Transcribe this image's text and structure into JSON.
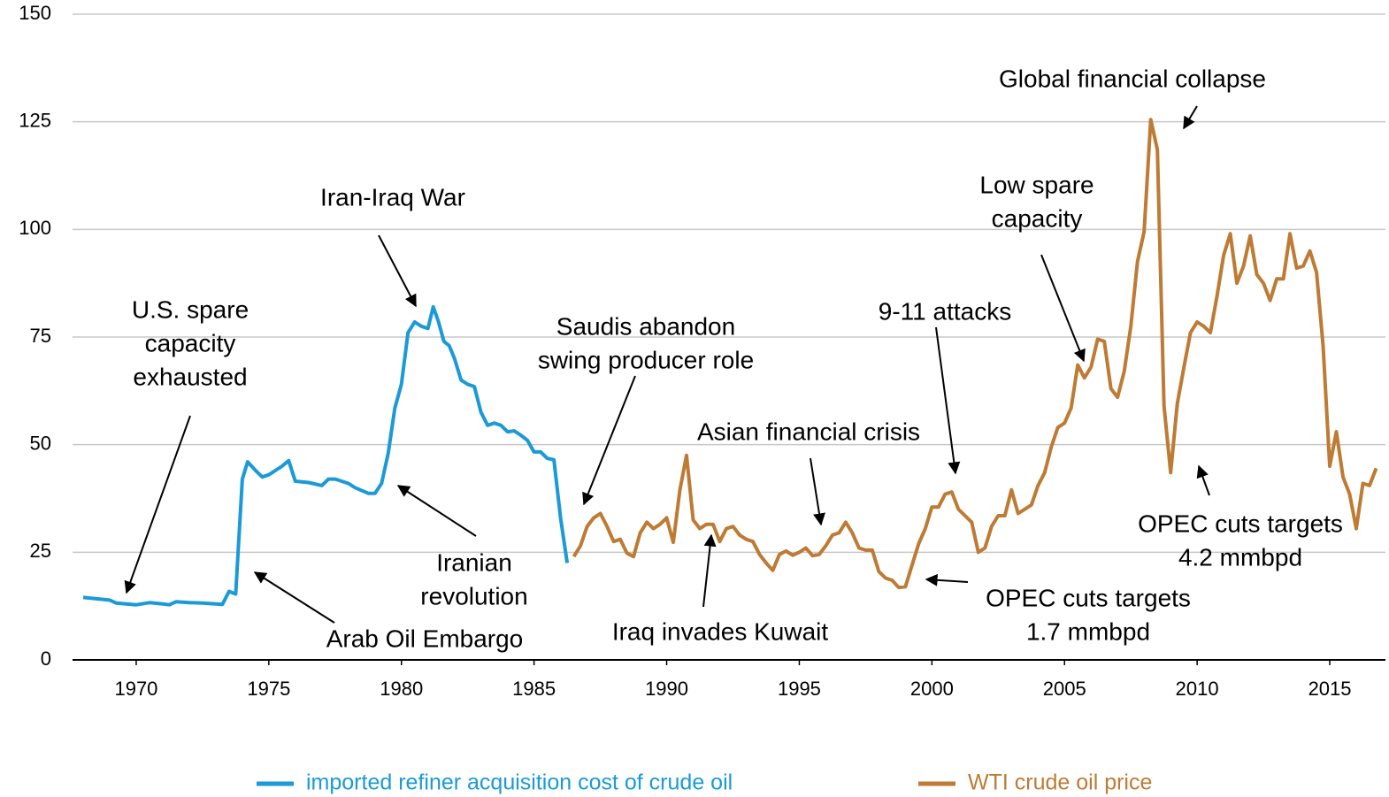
{
  "chart_data": {
    "type": "line",
    "xlim": [
      1967.6,
      2017.1
    ],
    "xticks": [
      1970,
      1975,
      1980,
      1985,
      1990,
      1995,
      2000,
      2005,
      2010,
      2015
    ],
    "ylim": [
      0,
      150
    ],
    "yticks": [
      0,
      25,
      50,
      75,
      100,
      125,
      150
    ],
    "grid": true,
    "legend": "bottom",
    "series": [
      {
        "name": "imported refiner acquisition cost of crude oil",
        "color": "#1a9ad6",
        "x": [
          1968,
          1968.5,
          1969,
          1969.25,
          1970,
          1970.5,
          1971,
          1971.25,
          1971.5,
          1972,
          1972.5,
          1973,
          1973.25,
          1973.5,
          1973.75,
          1974,
          1974.2,
          1974.5,
          1974.75,
          1975,
          1975.5,
          1975.75,
          1976,
          1976.5,
          1977,
          1977.25,
          1977.5,
          1978,
          1978.25,
          1978.75,
          1979,
          1979.25,
          1979.5,
          1979.75,
          1980,
          1980.25,
          1980.5,
          1980.75,
          1981,
          1981.2,
          1981.4,
          1981.6,
          1981.8,
          1982,
          1982.25,
          1982.5,
          1982.75,
          1983,
          1983.25,
          1983.5,
          1983.75,
          1984,
          1984.25,
          1984.5,
          1984.75,
          1985,
          1985.25,
          1985.5,
          1985.75,
          1986,
          1986.25
        ],
        "values": [
          14.5,
          14.2,
          13.9,
          13.2,
          12.8,
          13.3,
          13.0,
          12.8,
          13.5,
          13.3,
          13.2,
          13.0,
          12.9,
          15.9,
          15.3,
          42,
          46,
          44,
          42.5,
          43,
          45,
          46.3,
          41.5,
          41.2,
          40.5,
          42,
          42,
          41,
          40,
          38.7,
          38.7,
          41,
          48,
          58.5,
          64,
          76,
          78.5,
          77.5,
          77,
          82,
          78.5,
          74,
          73,
          70,
          65,
          64,
          63.5,
          57.5,
          54.5,
          55,
          54.5,
          53,
          53.2,
          52.2,
          51,
          48.3,
          48.3,
          46.8,
          46.5,
          33,
          22.5
        ]
      },
      {
        "name": "WTI crude oil price",
        "color": "#bd7b34",
        "x": [
          1986.5,
          1986.75,
          1987,
          1987.25,
          1987.5,
          1987.75,
          1988,
          1988.25,
          1988.5,
          1988.75,
          1989,
          1989.25,
          1989.5,
          1989.75,
          1990,
          1990.25,
          1990.5,
          1990.75,
          1991,
          1991.25,
          1991.5,
          1991.75,
          1992,
          1992.25,
          1992.5,
          1992.75,
          1993,
          1993.25,
          1993.5,
          1993.75,
          1994,
          1994.25,
          1994.5,
          1994.75,
          1995,
          1995.25,
          1995.5,
          1995.75,
          1996,
          1996.25,
          1996.5,
          1996.75,
          1997,
          1997.25,
          1997.5,
          1997.75,
          1998,
          1998.25,
          1998.5,
          1998.75,
          1999,
          1999.25,
          1999.5,
          1999.75,
          2000,
          2000.25,
          2000.5,
          2000.75,
          2001,
          2001.25,
          2001.5,
          2001.75,
          2002,
          2002.25,
          2002.5,
          2002.75,
          2003,
          2003.25,
          2003.5,
          2003.75,
          2004,
          2004.25,
          2004.5,
          2004.75,
          2005,
          2005.25,
          2005.5,
          2005.75,
          2006,
          2006.25,
          2006.5,
          2006.75,
          2007,
          2007.25,
          2007.5,
          2007.75,
          2008,
          2008.25,
          2008.5,
          2008.75,
          2009,
          2009.25,
          2009.5,
          2009.75,
          2010,
          2010.25,
          2010.5,
          2010.75,
          2011,
          2011.25,
          2011.5,
          2011.75,
          2012,
          2012.25,
          2012.5,
          2012.75,
          2013,
          2013.25,
          2013.5,
          2013.75,
          2014,
          2014.25,
          2014.5,
          2014.75,
          2015,
          2015.25,
          2015.5,
          2015.75,
          2016,
          2016.25,
          2016.5,
          2016.75
        ],
        "values": [
          24,
          26.5,
          31,
          33,
          34,
          31,
          27.5,
          28,
          24.8,
          24,
          29.5,
          32,
          30.5,
          31.5,
          33,
          27.3,
          39.5,
          47.5,
          32.5,
          30.5,
          31.5,
          31.5,
          27.5,
          30.5,
          31,
          29,
          28,
          27.5,
          24.5,
          22.5,
          20.8,
          24.5,
          25.3,
          24.3,
          25,
          26,
          24.2,
          24.5,
          26.5,
          29,
          29.5,
          32,
          29.5,
          26,
          25.5,
          25.5,
          20.5,
          19,
          18.5,
          16.8,
          17,
          22,
          27,
          30.5,
          35.5,
          35.5,
          38.5,
          39,
          35,
          33.5,
          32,
          25,
          26,
          31,
          33.5,
          33.5,
          39.5,
          34,
          35,
          36,
          40.5,
          43.5,
          49.5,
          54,
          55,
          58.5,
          68.5,
          65.5,
          68,
          74.5,
          74,
          63,
          61,
          67,
          77.5,
          92.5,
          99.5,
          125.5,
          118.5,
          59,
          43.5,
          59.5,
          68,
          76,
          78.5,
          77.5,
          76,
          84.5,
          94,
          99,
          87.5,
          91.5,
          98.5,
          89.5,
          87.5,
          83.5,
          88.5,
          88.5,
          99,
          91,
          91.5,
          95,
          90,
          73,
          45,
          53,
          42.5,
          38.5,
          30.5,
          41,
          40.5,
          44.5
        ]
      }
    ],
    "annotations": [
      {
        "text": [
          "U.S. spare",
          "capacity",
          "exhausted"
        ]
      },
      {
        "text": [
          "Iran-Iraq War"
        ]
      },
      {
        "text": [
          "Saudis abandon",
          "swing producer role"
        ]
      },
      {
        "text": [
          "Asian financial crisis"
        ]
      },
      {
        "text": [
          "9-11 attacks"
        ]
      },
      {
        "text": [
          "Low spare",
          "capacity"
        ]
      },
      {
        "text": [
          "Global financial collapse"
        ]
      },
      {
        "text": [
          "Iranian",
          "revolution"
        ]
      },
      {
        "text": [
          "Arab Oil Embargo"
        ]
      },
      {
        "text": [
          "Iraq invades Kuwait"
        ]
      },
      {
        "text": [
          "OPEC cuts targets",
          "1.7 mmbpd"
        ]
      },
      {
        "text": [
          "OPEC cuts targets",
          "4.2 mmbpd"
        ]
      }
    ]
  }
}
